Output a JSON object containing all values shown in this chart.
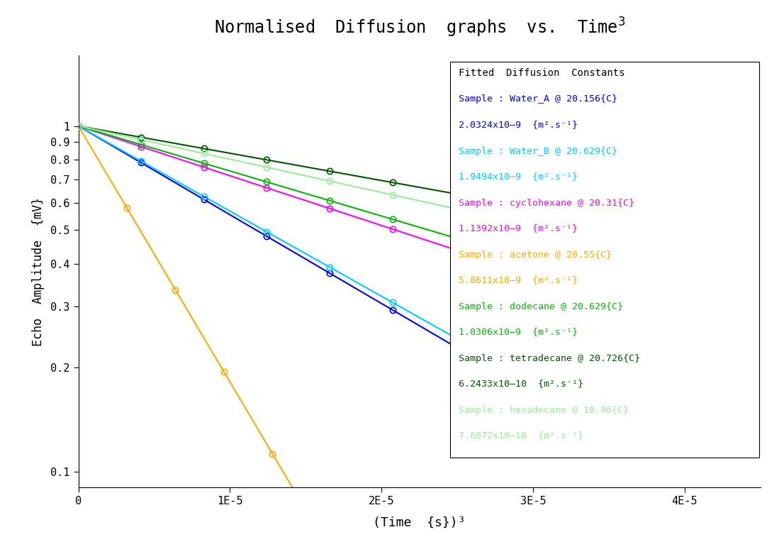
{
  "title": "Normalised  Diffusion  graphs  vs.  Time",
  "xlabel": "(Time  {s})³",
  "ylabel": "Echo  Amplitude  {mV}",
  "xlim": [
    0,
    4.5e-05
  ],
  "ylim": [
    0.09,
    1.6
  ],
  "yticks": [
    0.1,
    0.2,
    0.3,
    0.4,
    0.5,
    0.6,
    0.7,
    0.8,
    0.9,
    1.0
  ],
  "xticks": [
    0,
    1e-05,
    2e-05,
    3e-05,
    4e-05
  ],
  "xtick_labels": [
    "0",
    "1E-5",
    "2E-5",
    "3E-5",
    "4E-5"
  ],
  "series": [
    {
      "name": "Water_A",
      "label_line1": "Sample : Water_A @ 20.156{C}",
      "label_line2": "2.0324x10–9  {m².s⁻¹}",
      "D": 2.0324e-09,
      "color": "#0000ff",
      "n_points": 8,
      "x_max": 2.9e-05
    },
    {
      "name": "Water_B",
      "label_line1": "Sample : Water_B @ 20.629{C}",
      "label_line2": "1.9494x10–9  {m².s⁻¹}",
      "D": 1.9494e-09,
      "color": "#00ccff",
      "n_points": 8,
      "x_max": 2.9e-05
    },
    {
      "name": "cyclohexane",
      "label_line1": "Sample : cyclohexane @ 20.31{C}",
      "label_line2": "1.1392x10–9  {m².s⁻¹}",
      "D": 1.1392e-09,
      "color": "#ff00ff",
      "n_points": 8,
      "x_max": 2.9e-05
    },
    {
      "name": "acetone",
      "label_line1": "Sample : acetone @ 20.55{C}",
      "label_line2": "5.8611x10–9  {m².s⁻¹}",
      "D": 5.8611e-09,
      "color": "#ffaa00",
      "n_points": 6,
      "x_max": 1.6e-05
    },
    {
      "name": "dodecane",
      "label_line1": "Sample : dodecane @ 20.629{C}",
      "label_line2": "1.0306x10–9  {m².s⁻¹}",
      "D": 1.0306e-09,
      "color": "#00bb00",
      "n_points": 8,
      "x_max": 2.9e-05
    },
    {
      "name": "tetradecane",
      "label_line1": "Sample : tetradecane @ 20.726{C}",
      "label_line2": "6.2433x10–10  {m².s⁻¹}",
      "D": 6.2433e-10,
      "color": "#005500",
      "n_points": 8,
      "x_max": 2.9e-05
    },
    {
      "name": "hexadecane",
      "label_line1": "Sample : hexadecane @ 18.96{C}",
      "label_line2": "7.6072x10–10  {m².s⁻¹}",
      "D": 7.6072e-10,
      "color": "#99ee99",
      "n_points": 8,
      "x_max": 2.9e-05
    }
  ],
  "legend_title": "Fitted  Diffusion  Constants",
  "background_color": "#ffffff",
  "k_val": 29090000000000.0
}
